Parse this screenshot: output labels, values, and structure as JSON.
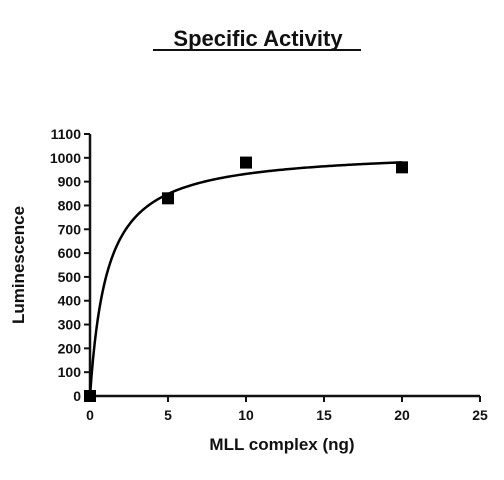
{
  "chart_data": {
    "type": "scatter",
    "title": "Specific Activity",
    "xlabel": "MLL complex (ng)",
    "ylabel": "Luminescence",
    "xlim": [
      0,
      25
    ],
    "ylim": [
      0,
      1100
    ],
    "xticks": [
      0,
      5,
      10,
      15,
      20,
      25
    ],
    "yticks": [
      0,
      100,
      200,
      300,
      400,
      500,
      600,
      700,
      800,
      900,
      1000,
      1100
    ],
    "grid": false,
    "legend": "none",
    "series": [
      {
        "marker": "square",
        "color": "#000000",
        "x": [
          0,
          5,
          10,
          20
        ],
        "y": [
          0,
          830,
          980,
          960
        ]
      }
    ],
    "fit_curve": {
      "model": "hyperbola",
      "vmax": 1035,
      "k": 1.1,
      "color": "#000000"
    }
  }
}
